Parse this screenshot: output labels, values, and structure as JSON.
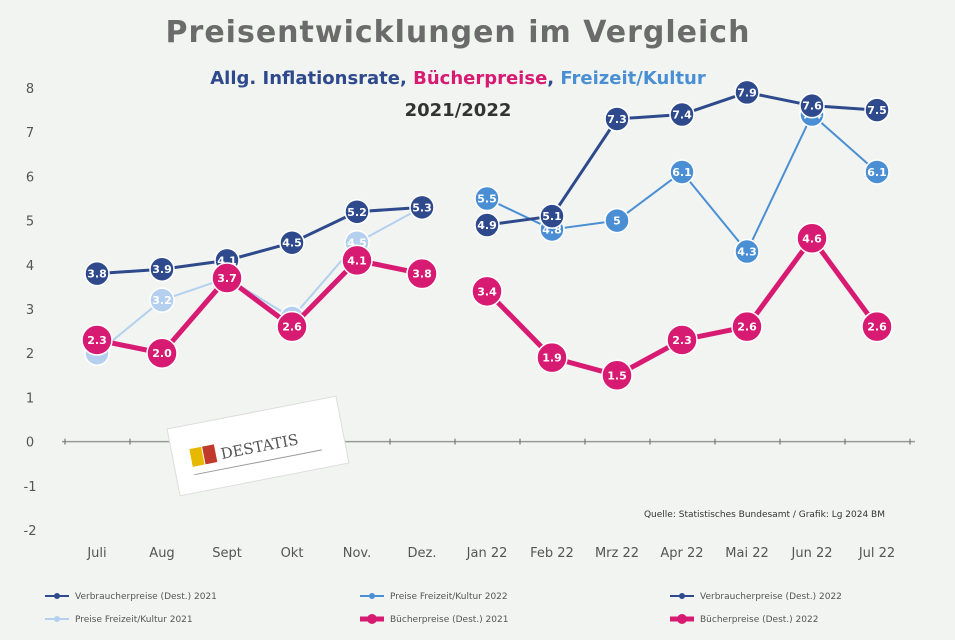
{
  "chart_data": {
    "type": "line",
    "title": "Preisentwicklungen im  Vergleich",
    "subtitle_parts": [
      {
        "text": "Allg. Inflationsrate, ",
        "color": "#2e4a8c"
      },
      {
        "text": "Bücherpreise",
        "color": "#d81b72"
      },
      {
        "text": ", ",
        "color": "#2e4a8c"
      },
      {
        "text": "Freizeit/Kultur",
        "color": "#4a8fd4"
      }
    ],
    "period": "2021/2022",
    "categories": [
      "Juli",
      "Aug",
      "Sept",
      "Okt",
      "Nov.",
      "Dez.",
      "Jan 22",
      "Feb 22",
      "Mrz 22",
      "Apr 22",
      "Mai 22",
      "Jun 22",
      "Jul 22"
    ],
    "ylim": [
      -2,
      8
    ],
    "yticks": [
      -2,
      -1,
      0,
      1,
      2,
      3,
      4,
      5,
      6,
      7,
      8
    ],
    "series": [
      {
        "name": "Verbraucherpreise (Dest.) 2021",
        "color": "#2e4a8c",
        "style": "inflation",
        "values": [
          3.8,
          3.9,
          4.1,
          4.5,
          5.2,
          5.3,
          null,
          null,
          null,
          null,
          null,
          null,
          null
        ],
        "labels": [
          "3.8",
          "3.9",
          "4.1",
          "4.5",
          "5.2",
          "5.3",
          "",
          "",
          "",
          "",
          "",
          "",
          ""
        ]
      },
      {
        "name": "Preise Freizeit/Kultur 2021",
        "color": "#b4d0ee",
        "style": "freizeit",
        "values": [
          2.0,
          3.2,
          3.7,
          2.8,
          4.5,
          5.3,
          null,
          null,
          null,
          null,
          null,
          null,
          null
        ],
        "labels": [
          "",
          "3.2",
          "3.7",
          "",
          "4.5",
          "5.3",
          "",
          "",
          "",
          "",
          "",
          "",
          ""
        ]
      },
      {
        "name": "Bücherpreise (Dest.) 2021",
        "color": "#d81b72",
        "style": "books",
        "values": [
          2.3,
          2.0,
          3.7,
          2.6,
          4.1,
          3.8,
          null,
          null,
          null,
          null,
          null,
          null,
          null
        ],
        "labels": [
          "2.3",
          "2.0",
          "3.7",
          "2.6",
          "4.1",
          "3.8",
          "",
          "",
          "",
          "",
          "",
          "",
          ""
        ]
      },
      {
        "name": "Verbraucherpreise (Dest.) 2022",
        "color": "#2e4a8c",
        "style": "inflation",
        "values": [
          null,
          null,
          null,
          null,
          null,
          null,
          4.9,
          5.1,
          7.3,
          7.4,
          7.9,
          7.6,
          7.5
        ],
        "labels": [
          "",
          "",
          "",
          "",
          "",
          "",
          "4.9",
          "5.1",
          "7.3",
          "7.4",
          "7.9",
          "7.6",
          "7.5"
        ]
      },
      {
        "name": "Preise Freizeit/Kultur 2022",
        "color": "#4a8fd4",
        "style": "freizeit",
        "values": [
          null,
          null,
          null,
          null,
          null,
          null,
          5.5,
          4.8,
          5.0,
          6.1,
          4.3,
          7.4,
          6.1
        ],
        "labels": [
          "",
          "",
          "",
          "",
          "",
          "",
          "5.5",
          "4.8",
          "5",
          "6.1",
          "4.3",
          "7.4",
          "6.1"
        ]
      },
      {
        "name": "Bücherpreise (Dest.) 2022",
        "color": "#d81b72",
        "style": "books",
        "values": [
          null,
          null,
          null,
          null,
          null,
          null,
          3.4,
          1.9,
          1.5,
          2.3,
          2.6,
          4.6,
          2.6
        ],
        "labels": [
          "",
          "",
          "",
          "",
          "",
          "",
          "3.4",
          "1.9",
          "1.5",
          "2.3",
          "2.6",
          "4.6",
          "2.6"
        ]
      }
    ],
    "grid": false,
    "legend_position": "bottom",
    "source": "Quelle: Statistisches Bundesamt / Grafik: Lg 2024 BM",
    "logo": {
      "text": "DESTATIS",
      "color": "#555555"
    }
  }
}
